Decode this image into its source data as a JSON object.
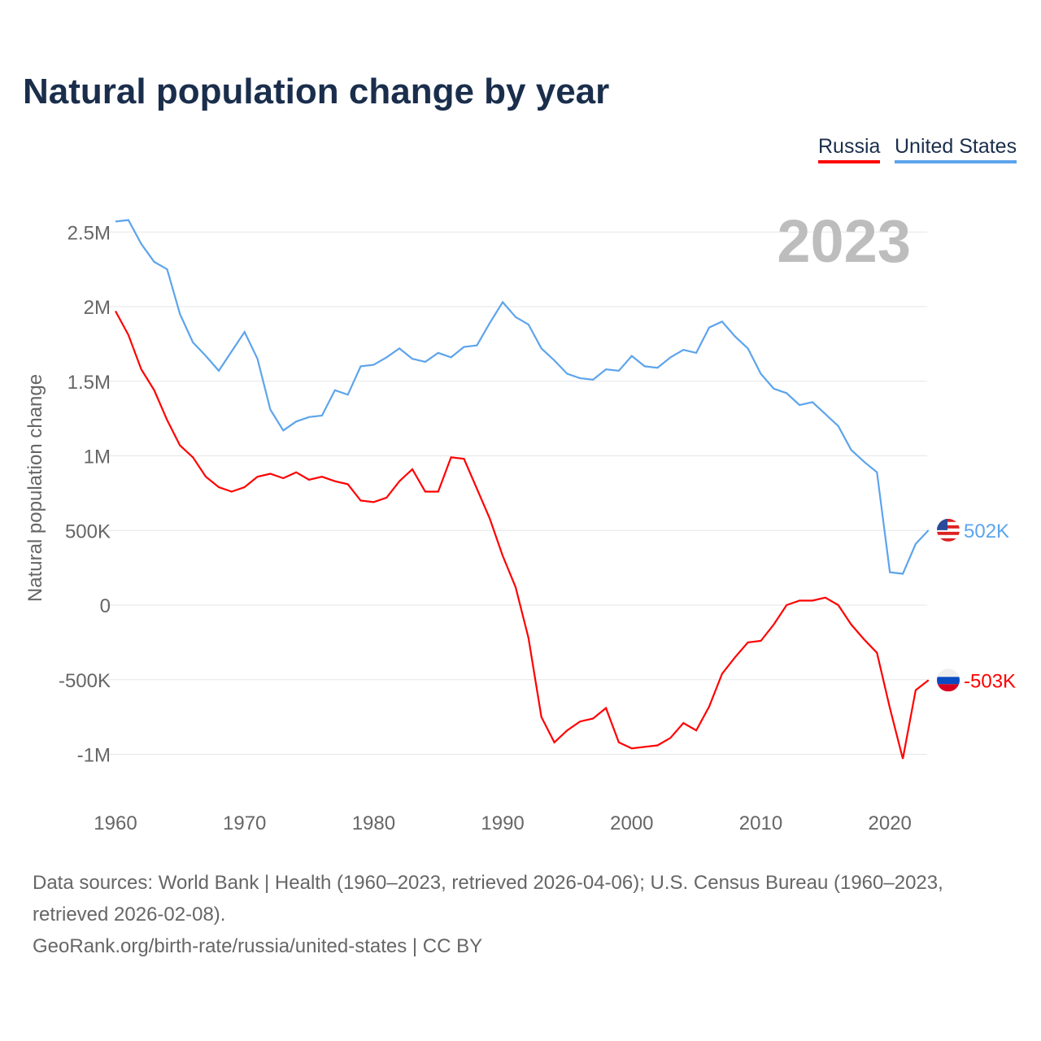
{
  "title": "Natural population change by year",
  "legend": [
    {
      "label": "Russia",
      "color": "#ff0000"
    },
    {
      "label": "United States",
      "color": "#5da4ec"
    }
  ],
  "source": {
    "line1": "Data sources: World Bank | Health (1960–2023, retrieved 2026-04-06); U.S. Census Bureau (1960–2023, retrieved 2026-02-08).",
    "line2": "GeoRank.org/birth-rate/russia/united-states | CC BY"
  },
  "chart_data": {
    "type": "line",
    "title": "Natural population change by year",
    "ylabel": "Natural population change",
    "xlabel": "",
    "year_label": "2023",
    "xlim": [
      1960,
      2023
    ],
    "ylim": [
      -1200000,
      2700000
    ],
    "x_ticks": [
      1960,
      1970,
      1980,
      1990,
      2000,
      2010,
      2020
    ],
    "y_ticks": [
      {
        "v": 2500000,
        "l": "2.5M"
      },
      {
        "v": 2000000,
        "l": "2M"
      },
      {
        "v": 1500000,
        "l": "1.5M"
      },
      {
        "v": 1000000,
        "l": "1M"
      },
      {
        "v": 500000,
        "l": "500K"
      },
      {
        "v": 0,
        "l": "0"
      },
      {
        "v": -500000,
        "l": "-500K"
      },
      {
        "v": -1000000,
        "l": "-1M"
      }
    ],
    "x": [
      1960,
      1961,
      1962,
      1963,
      1964,
      1965,
      1966,
      1967,
      1968,
      1969,
      1970,
      1971,
      1972,
      1973,
      1974,
      1975,
      1976,
      1977,
      1978,
      1979,
      1980,
      1981,
      1982,
      1983,
      1984,
      1985,
      1986,
      1987,
      1988,
      1989,
      1990,
      1991,
      1992,
      1993,
      1994,
      1995,
      1996,
      1997,
      1998,
      1999,
      2000,
      2001,
      2002,
      2003,
      2004,
      2005,
      2006,
      2007,
      2008,
      2009,
      2010,
      2011,
      2012,
      2013,
      2014,
      2015,
      2016,
      2017,
      2018,
      2019,
      2020,
      2021,
      2022,
      2023
    ],
    "series": [
      {
        "name": "United States",
        "color": "#5da4ec",
        "end_label": "502K",
        "flag": "us-flag",
        "values": [
          2570000,
          2580000,
          2420000,
          2300000,
          2250000,
          1950000,
          1760000,
          1670000,
          1570000,
          1700000,
          1830000,
          1650000,
          1310000,
          1170000,
          1230000,
          1260000,
          1270000,
          1440000,
          1410000,
          1600000,
          1610000,
          1660000,
          1720000,
          1650000,
          1630000,
          1690000,
          1660000,
          1730000,
          1740000,
          1890000,
          2030000,
          1930000,
          1880000,
          1720000,
          1640000,
          1550000,
          1520000,
          1510000,
          1580000,
          1570000,
          1670000,
          1600000,
          1590000,
          1660000,
          1710000,
          1690000,
          1860000,
          1900000,
          1800000,
          1720000,
          1550000,
          1450000,
          1420000,
          1340000,
          1360000,
          1280000,
          1200000,
          1040000,
          960000,
          890000,
          220000,
          210000,
          410000,
          502000
        ]
      },
      {
        "name": "Russia",
        "color": "#ff0000",
        "end_label": "-503K",
        "flag": "russia-flag",
        "values": [
          1970000,
          1810000,
          1580000,
          1440000,
          1240000,
          1070000,
          990000,
          860000,
          790000,
          760000,
          790000,
          860000,
          880000,
          850000,
          890000,
          840000,
          860000,
          830000,
          810000,
          700000,
          690000,
          720000,
          830000,
          910000,
          760000,
          760000,
          990000,
          980000,
          780000,
          580000,
          330000,
          120000,
          -220000,
          -750000,
          -920000,
          -840000,
          -780000,
          -760000,
          -690000,
          -920000,
          -960000,
          -950000,
          -940000,
          -890000,
          -790000,
          -840000,
          -680000,
          -460000,
          -350000,
          -250000,
          -240000,
          -130000,
          0,
          30000,
          30000,
          50000,
          0,
          -130000,
          -230000,
          -320000,
          -690000,
          -1030000,
          -570000,
          -503000
        ]
      }
    ]
  }
}
